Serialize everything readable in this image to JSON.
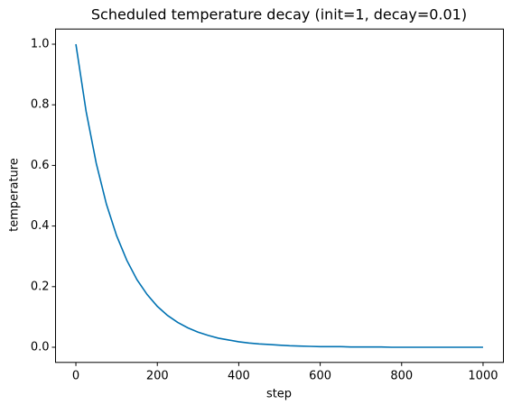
{
  "chart_data": {
    "type": "line",
    "title": "Scheduled temperature decay (init=1, decay=0.01)",
    "x_label": "step",
    "y_label": "temperature",
    "x": [
      0,
      25,
      50,
      75,
      100,
      125,
      150,
      175,
      200,
      225,
      250,
      275,
      300,
      325,
      350,
      375,
      400,
      425,
      450,
      475,
      500,
      525,
      550,
      575,
      600,
      625,
      650,
      675,
      700,
      725,
      750,
      775,
      800,
      825,
      850,
      875,
      900,
      925,
      950,
      975,
      1000
    ],
    "values": [
      1,
      0.779,
      0.607,
      0.472,
      0.368,
      0.287,
      0.223,
      0.174,
      0.135,
      0.105,
      0.082,
      0.064,
      0.05,
      0.039,
      0.03,
      0.024,
      0.018,
      0.014,
      0.011,
      0.009,
      0.007,
      0.005,
      0.004,
      0.003,
      0.002,
      0.002,
      0.002,
      0.001,
      0.001,
      0.001,
      0.001,
      0,
      0,
      0,
      0,
      0,
      0,
      0,
      0,
      0,
      0
    ],
    "color": "#0072b2",
    "xlim": [
      -50,
      1050
    ],
    "xticks": [
      0,
      200,
      400,
      600,
      800,
      1000
    ],
    "ylim": [
      -0.05,
      1.05
    ],
    "yticks": [
      {
        "value": 0,
        "label": "0.0"
      },
      0.2,
      0.4,
      0.6,
      0.8,
      {
        "value": 1,
        "label": "1.0"
      }
    ],
    "grid": false
  }
}
